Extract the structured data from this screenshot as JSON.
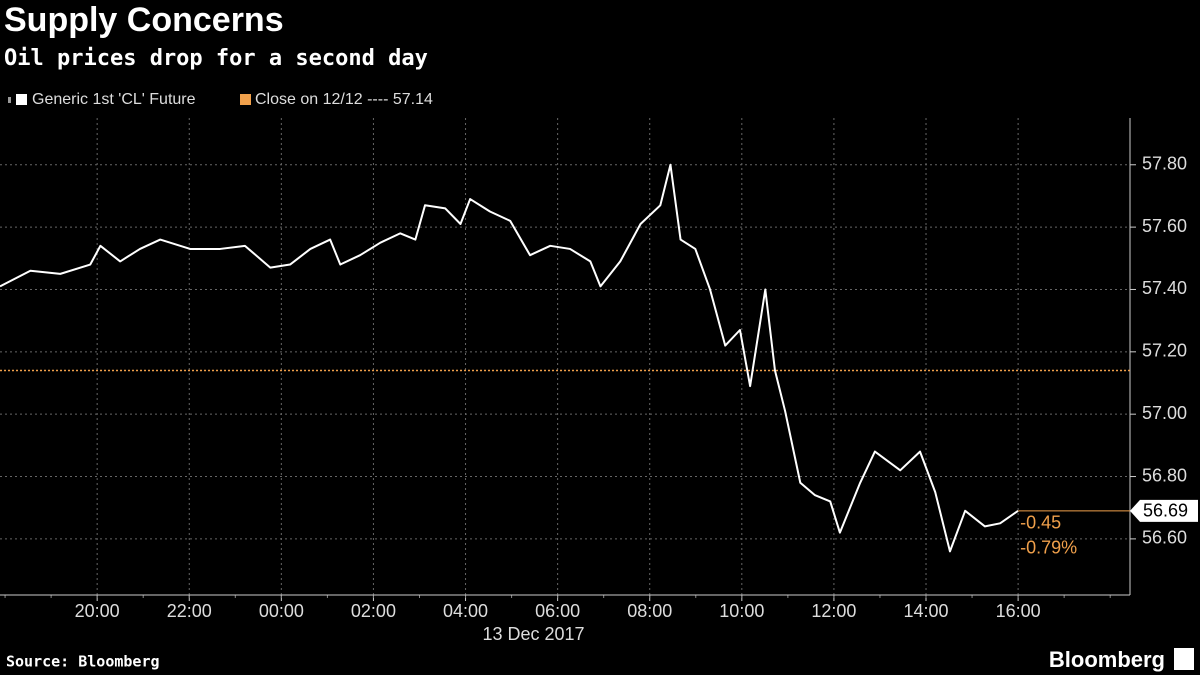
{
  "chart_data": {
    "type": "line",
    "title": "Supply Concerns",
    "subtitle": "Oil prices drop for a second day",
    "x_date_label": "13 Dec 2017",
    "source": "Source: Bloomberg",
    "brand": "Bloomberg",
    "grid": true,
    "xlim": [
      -6.11,
      18.43
    ],
    "xticks": [
      {
        "value": -4,
        "label": "20:00"
      },
      {
        "value": -2,
        "label": "22:00"
      },
      {
        "value": 0,
        "label": "00:00"
      },
      {
        "value": 2,
        "label": "02:00"
      },
      {
        "value": 4,
        "label": "04:00"
      },
      {
        "value": 6,
        "label": "06:00"
      },
      {
        "value": 8,
        "label": "08:00"
      },
      {
        "value": 10,
        "label": "10:00"
      },
      {
        "value": 12,
        "label": "12:00"
      },
      {
        "value": 14,
        "label": "14:00"
      },
      {
        "value": 16,
        "label": "16:00"
      }
    ],
    "ylim": [
      56.42,
      57.95
    ],
    "yticks": [
      {
        "value": 56.6,
        "label": "56.60"
      },
      {
        "value": 56.8,
        "label": "56.80"
      },
      {
        "value": 57.0,
        "label": "57.00"
      },
      {
        "value": 57.2,
        "label": "57.20"
      },
      {
        "value": 57.4,
        "label": "57.40"
      },
      {
        "value": 57.6,
        "label": "57.60"
      },
      {
        "value": 57.8,
        "label": "57.80"
      }
    ],
    "series": [
      {
        "name": "Generic 1st 'CL' Future",
        "color": "#ffffff",
        "x": [
          -6.11,
          -5.45,
          -4.8,
          -4.15,
          -3.93,
          -3.5,
          -3.07,
          -2.63,
          -1.98,
          -1.33,
          -0.79,
          -0.24,
          0.19,
          0.63,
          1.06,
          1.28,
          1.71,
          2.15,
          2.58,
          2.91,
          3.12,
          3.56,
          3.89,
          4.1,
          4.53,
          4.97,
          5.4,
          5.84,
          6.27,
          6.71,
          6.93,
          7.36,
          7.8,
          8.23,
          8.45,
          8.67,
          8.99,
          9.31,
          9.64,
          9.96,
          10.18,
          10.51,
          10.72,
          10.94,
          11.27,
          11.59,
          11.92,
          12.13,
          12.57,
          12.89,
          13.44,
          13.87,
          14.2,
          14.52,
          14.85,
          15.28,
          15.61,
          16.0
        ],
        "values": [
          57.41,
          57.46,
          57.45,
          57.48,
          57.54,
          57.49,
          57.53,
          57.56,
          57.53,
          57.53,
          57.54,
          57.47,
          57.48,
          57.53,
          57.56,
          57.48,
          57.51,
          57.55,
          57.58,
          57.56,
          57.67,
          57.66,
          57.61,
          57.69,
          57.65,
          57.62,
          57.51,
          57.54,
          57.53,
          57.49,
          57.41,
          57.49,
          57.61,
          57.67,
          57.8,
          57.56,
          57.53,
          57.4,
          57.22,
          57.27,
          57.09,
          57.4,
          57.14,
          57.01,
          56.78,
          56.74,
          56.72,
          56.62,
          56.78,
          56.88,
          56.82,
          56.88,
          56.75,
          56.56,
          56.69,
          56.64,
          56.65,
          56.69
        ]
      }
    ],
    "reference": {
      "label": "Close on 12/12 ----",
      "value": 57.14,
      "color": "#f0a04b"
    },
    "annotations": [
      "-0.45",
      "-0.79%"
    ]
  }
}
